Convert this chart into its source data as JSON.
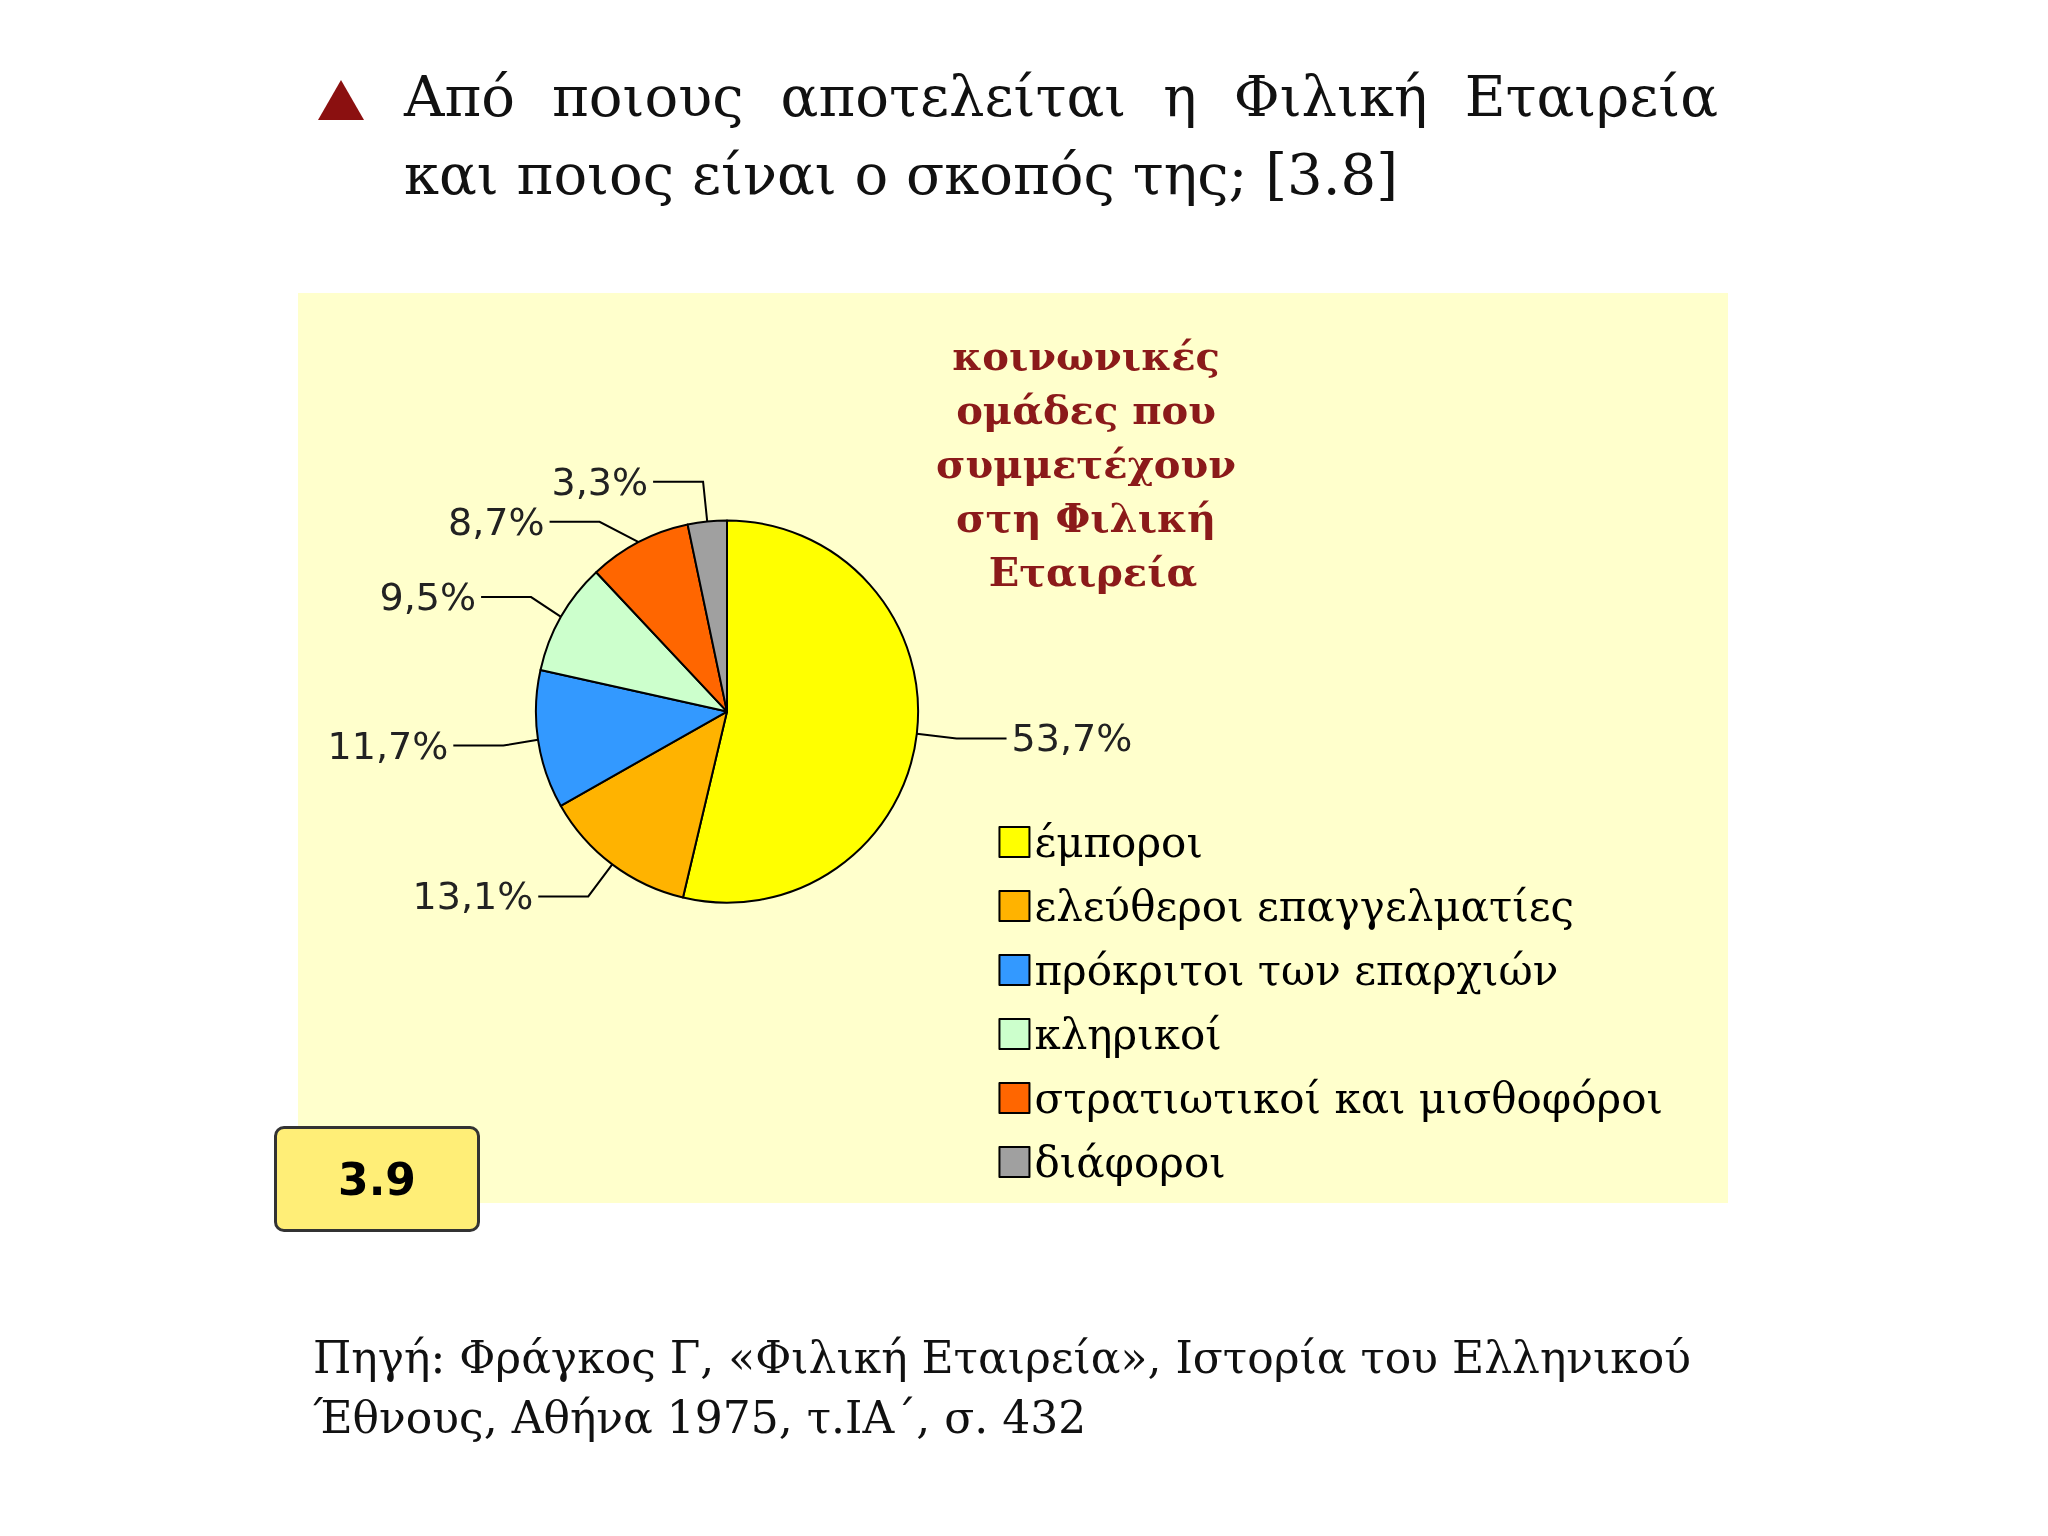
{
  "chart_data": {
    "type": "pie",
    "title": "Από ποιους αποτελείται η Φιλική Εταιρεία και ποιος είναι ο σκοπός της; [3.8]",
    "subtitle": "κοινωνικές ομάδες που συμμετέχουν στη Φιλική Εταιρεία",
    "categories": [
      "έμποροι",
      "ελεύθεροι επαγγελματίες",
      "πρόκριτοι των επαρχιών",
      "κληρικοί",
      "στρατιωτικοί και μισθοφόροι",
      "διάφοροι"
    ],
    "values": [
      53.7,
      13.1,
      11.7,
      9.5,
      8.7,
      3.3
    ],
    "value_labels": [
      "53,7%",
      "13,1%",
      "11,7%",
      "9,5%",
      "8,7%",
      "3,3%"
    ],
    "colors": [
      "#ffff00",
      "#ffb300",
      "#3399ff",
      "#ccffcc",
      "#ff6600",
      "#a0a0a0"
    ],
    "legend": "bottom right",
    "annotations": [
      "3.9",
      "Πηγή: Φράγκος Γ, «Φιλική Εταιρεία», Ιστορία του Ελληνικού Έθνους, Αθήνα 1975, τ.ΙΑ΄, σ. 432"
    ]
  }
}
